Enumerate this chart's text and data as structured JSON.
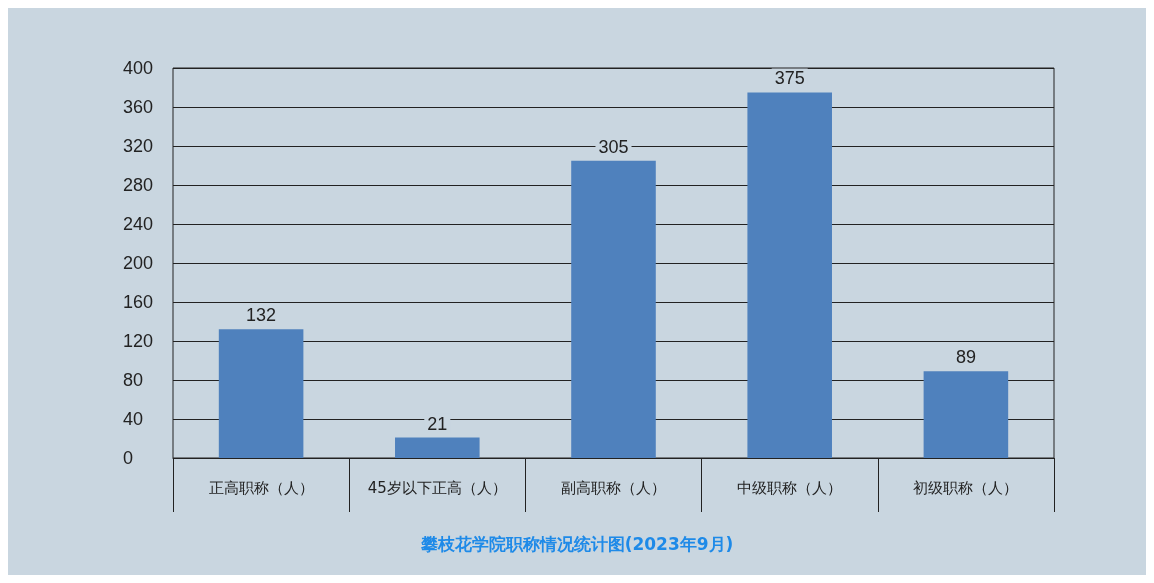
{
  "chart_data": {
    "type": "bar",
    "title": "攀枝花学院职称情况统计图(2023年9月)",
    "categories": [
      "正高职称（人）",
      "45岁以下正高（人）",
      "副高职称（人）",
      "中级职称（人）",
      "初级职称（人）"
    ],
    "values": [
      132,
      21,
      305,
      375,
      89
    ],
    "color": "#4f81bd",
    "ylim": [
      0,
      400
    ],
    "yticks": [
      0,
      40,
      80,
      120,
      160,
      200,
      240,
      280,
      320,
      360,
      400
    ],
    "grid": "y",
    "data_labels": true
  }
}
